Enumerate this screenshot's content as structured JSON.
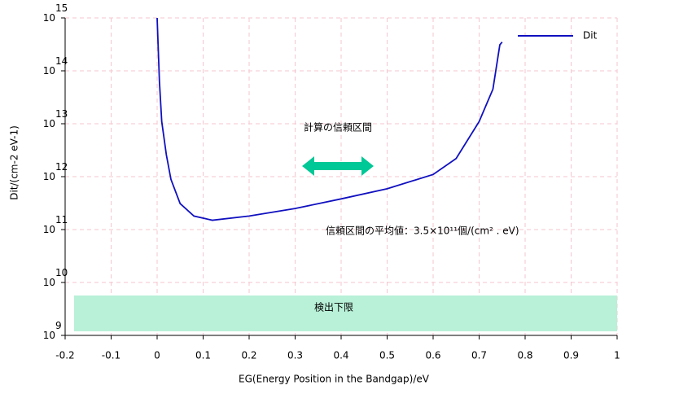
{
  "chart_data": {
    "type": "line",
    "x_label": "EG(Energy Position in the Bandgap)/eV",
    "y_label": "Dit/(cm-2 eV-1)",
    "log_y": true,
    "grid": true,
    "legend": "upper right",
    "xlim": [
      -0.2,
      1
    ],
    "xticks": [
      -0.2,
      -0.1,
      0,
      0.1,
      0.2,
      0.3,
      0.4,
      0.5,
      0.6,
      0.7,
      0.8,
      0.9,
      1
    ],
    "ylim": [
      1000000000.0,
      1000000000000000.0
    ],
    "yticks": [
      {
        "value": 1000000000.0,
        "label": "10",
        "exponent": "9"
      },
      {
        "value": 10000000000.0,
        "label": "10",
        "exponent": "10"
      },
      {
        "value": 100000000000.0,
        "label": "10",
        "exponent": "11"
      },
      {
        "value": 1000000000000.0,
        "label": "10",
        "exponent": "12"
      },
      {
        "value": 10000000000000.0,
        "label": "10",
        "exponent": "13"
      },
      {
        "value": 100000000000000.0,
        "label": "10",
        "exponent": "14"
      },
      {
        "value": 1000000000000000.0,
        "label": "10",
        "exponent": "15"
      }
    ],
    "x": [
      0,
      0.005,
      0.01,
      0.02,
      0.03,
      0.05,
      0.08,
      0.12,
      0.2,
      0.3,
      0.4,
      0.5,
      0.6,
      0.65,
      0.7,
      0.73,
      0.745,
      0.75
    ],
    "series": [
      {
        "name": "Dit",
        "color": "#1010c0",
        "values": [
          1000000000000000.0,
          63000000000000.0,
          11000000000000.0,
          2600000000000.0,
          890000000000.0,
          310000000000.0,
          180000000000.0,
          150000000000.0,
          180000000000.0,
          250000000000.0,
          380000000000.0,
          590000000000.0,
          1100000000000.0,
          2200000000000.0,
          11000000000000.0,
          45000000000000.0,
          310000000000000.0,
          350000000000000.0
        ]
      }
    ],
    "annotations": [
      "計算の信頼区間",
      "信頼区間の平均値：3.5×10¹¹個/(cm² . eV)",
      "検出下限"
    ]
  }
}
